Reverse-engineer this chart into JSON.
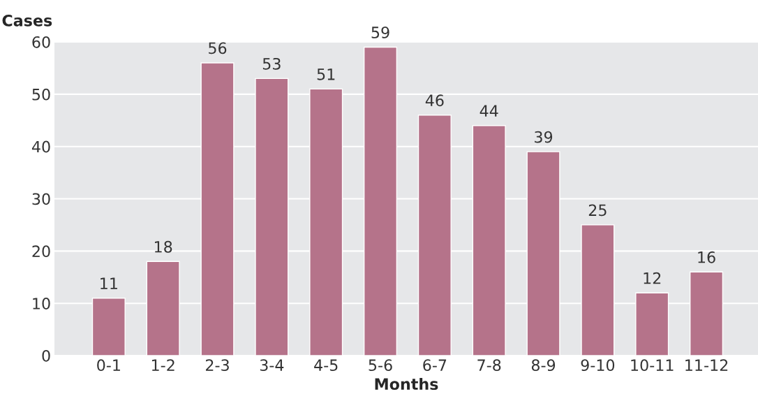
{
  "chart_data": {
    "type": "bar",
    "xlabel": "Months",
    "ylabel": "Cases",
    "categories": [
      "0-1",
      "1-2",
      "2-3",
      "3-4",
      "4-5",
      "5-6",
      "6-7",
      "7-8",
      "8-9",
      "9-10",
      "10-11",
      "11-12"
    ],
    "values": [
      11,
      18,
      56,
      53,
      51,
      59,
      46,
      44,
      39,
      25,
      12,
      16
    ],
    "color": "#b5738a",
    "ylim": [
      0,
      60
    ],
    "yticks": [
      0,
      10,
      20,
      30,
      40,
      50,
      60
    ],
    "grid": "y",
    "data_labels": true
  }
}
